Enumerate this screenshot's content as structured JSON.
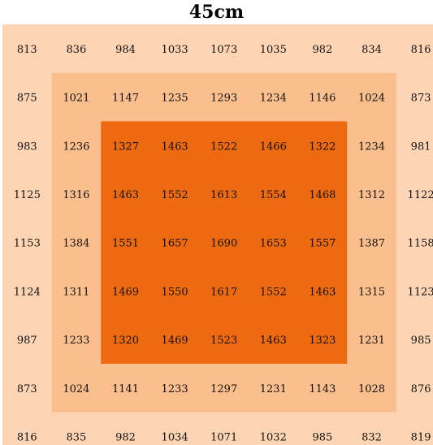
{
  "chart_data": {
    "type": "heatmap",
    "title": "45cm",
    "rows": 9,
    "cols": 9,
    "values": [
      [
        813,
        836,
        984,
        1033,
        1073,
        1035,
        982,
        834,
        816
      ],
      [
        875,
        1021,
        1147,
        1235,
        1293,
        1234,
        1146,
        1024,
        873
      ],
      [
        983,
        1236,
        1327,
        1463,
        1522,
        1466,
        1322,
        1234,
        981
      ],
      [
        1125,
        1316,
        1463,
        1552,
        1613,
        1554,
        1468,
        1312,
        1122
      ],
      [
        1153,
        1384,
        1551,
        1657,
        1690,
        1653,
        1557,
        1387,
        1158
      ],
      [
        1124,
        1311,
        1469,
        1550,
        1617,
        1552,
        1463,
        1315,
        1123
      ],
      [
        987,
        1233,
        1320,
        1469,
        1523,
        1463,
        1323,
        1231,
        985
      ],
      [
        873,
        1024,
        1141,
        1233,
        1297,
        1231,
        1143,
        1028,
        876
      ],
      [
        816,
        835,
        982,
        1034,
        1071,
        1032,
        985,
        832,
        819
      ]
    ],
    "zone_colors": [
      "#fdd5b4",
      "#fbbf8e",
      "#ee6a10"
    ]
  }
}
